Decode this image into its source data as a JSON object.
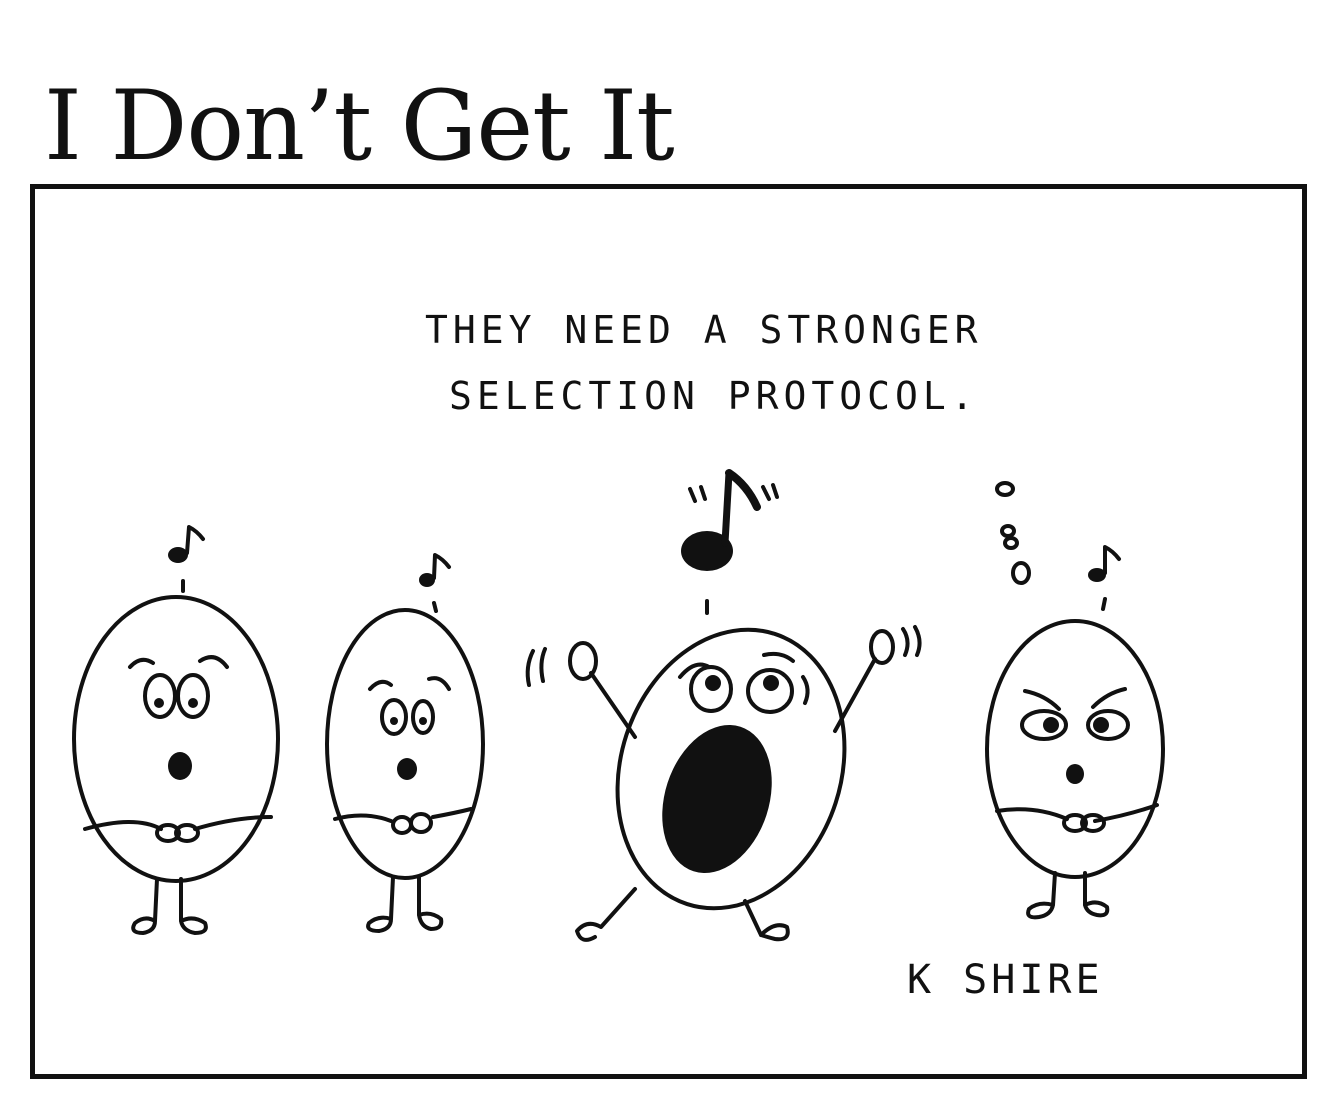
{
  "comic": {
    "title": "I Don’t Get It",
    "caption_line1": "THEY NEED A STRONGER",
    "caption_line2": "SELECTION PROTOCOL.",
    "signature": "K SHIRE"
  }
}
